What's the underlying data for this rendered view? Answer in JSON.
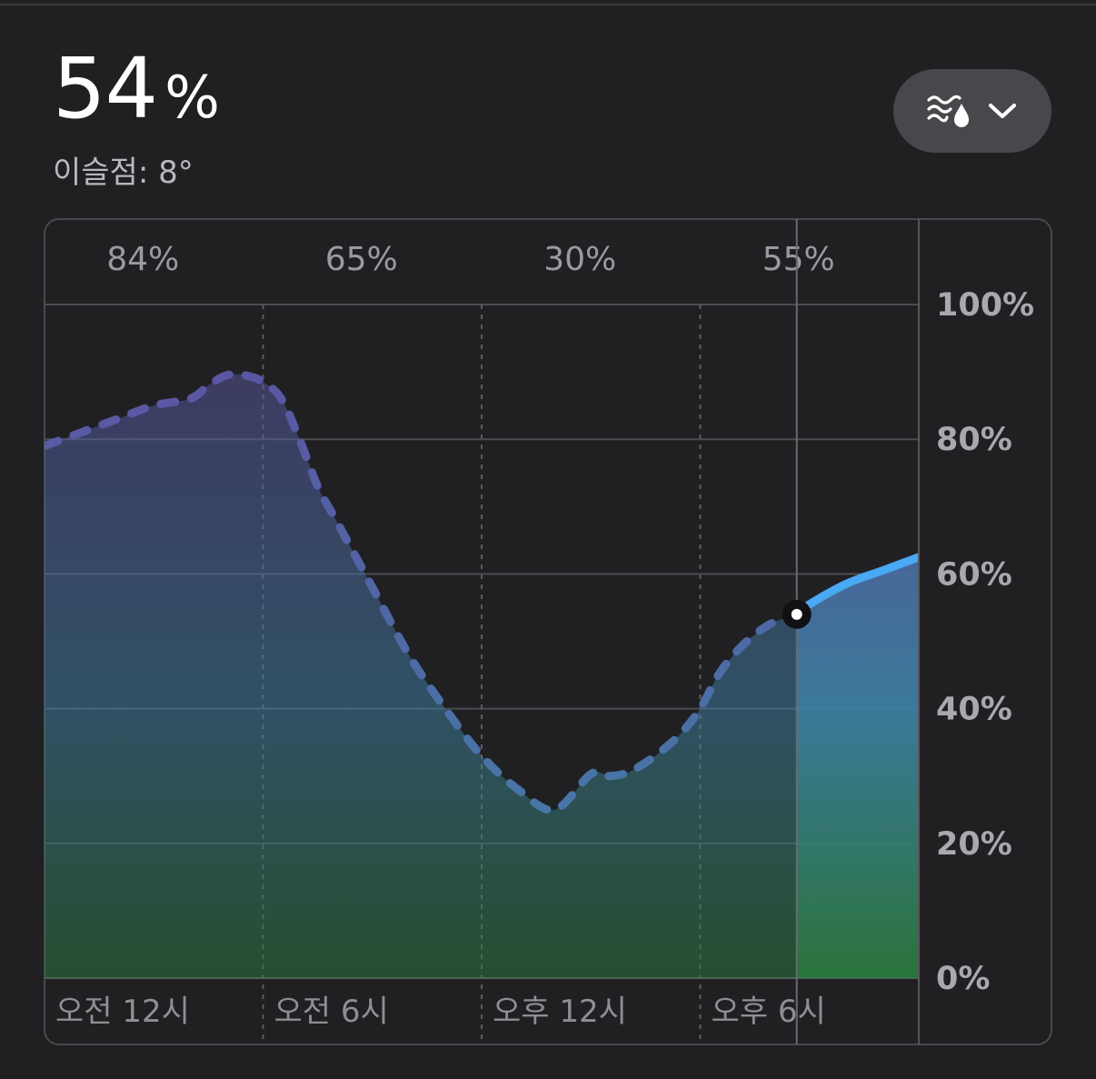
{
  "header": {
    "current_value": "54",
    "current_unit": "%",
    "dew_point": "이슬점: 8°"
  },
  "metric_selector": {
    "icon": "humidity-icon",
    "chevron": "chevron-down-icon"
  },
  "colors": {
    "background": "#202022",
    "line_past_top": "#5b56a3",
    "line_past_bottom": "#3f82a8",
    "line_future": "#49a9f2",
    "fill_bottom": "#2b7d3e"
  },
  "chart_data": {
    "type": "area",
    "title": "",
    "xlabel": "",
    "ylabel": "",
    "ylim": [
      0,
      100
    ],
    "y_ticks": [
      "100%",
      "80%",
      "60%",
      "40%",
      "20%",
      "0%"
    ],
    "y_tick_values": [
      100,
      80,
      60,
      40,
      20,
      0
    ],
    "x_range_hours": [
      0,
      24
    ],
    "x_ticks": [
      "오전 12시",
      "오전 6시",
      "오후 12시",
      "오후 6시"
    ],
    "x_tick_hours": [
      0,
      6,
      12,
      18
    ],
    "period_summaries": [
      "84%",
      "65%",
      "30%",
      "55%"
    ],
    "current_hour": 20.65,
    "current_value": 54,
    "grid": true,
    "series": [
      {
        "x": [
          0,
          1,
          2,
          3,
          4,
          4.5,
          5,
          5.5,
          6,
          6.5,
          7,
          7.5,
          8,
          9,
          10,
          11,
          12,
          13,
          14,
          15,
          15.5,
          16,
          16.5,
          17,
          17.5,
          18,
          18.5,
          19,
          19.5,
          20,
          20.65,
          21,
          22,
          23,
          24
        ],
        "y": [
          79,
          81,
          83,
          85,
          86,
          88,
          89.5,
          89.5,
          88.5,
          86,
          80,
          73,
          68,
          58,
          48,
          40,
          33,
          28,
          25,
          30.3,
          30,
          30.5,
          32,
          34,
          36.5,
          40,
          45,
          48.5,
          51,
          52.8,
          54,
          55.5,
          58.5,
          60.5,
          62.5
        ]
      }
    ]
  }
}
